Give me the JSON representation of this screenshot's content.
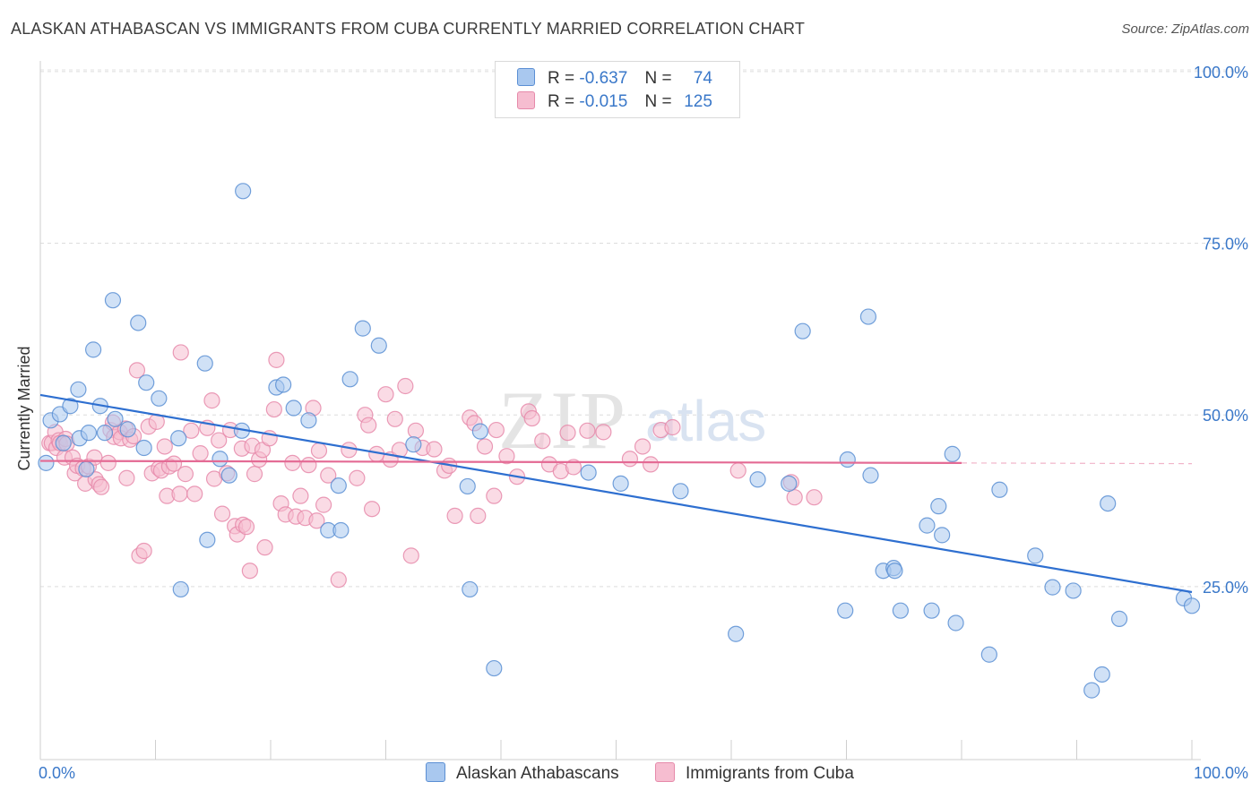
{
  "title": "ALASKAN ATHABASCAN VS IMMIGRANTS FROM CUBA CURRENTLY MARRIED CORRELATION CHART",
  "source": "Source: ZipAtlas.com",
  "watermark": {
    "zip": "ZIP",
    "atlas": "atlas"
  },
  "legend": {
    "row1": {
      "r_label": "R =",
      "r_value": "-0.637",
      "n_label": "N =",
      "n_value": "74"
    },
    "row2": {
      "r_label": "R =",
      "r_value": "-0.015",
      "n_label": "N =",
      "n_value": "125"
    }
  },
  "bottom_legend": {
    "series1": "Alaskan Athabascans",
    "series2": "Immigrants from Cuba"
  },
  "colors": {
    "blue_fill": "#a9c8ef",
    "blue_stroke": "#5b8fd4",
    "blue_line": "#2e6fd0",
    "pink_fill": "#f6bdd0",
    "pink_stroke": "#e68aaa",
    "pink_line": "#e46a94",
    "tick_text": "#3a78c9"
  },
  "chart_data": {
    "type": "scatter",
    "title": "ALASKAN ATHABASCAN VS IMMIGRANTS FROM CUBA CURRENTLY MARRIED CORRELATION CHART",
    "xlabel": "",
    "ylabel": "Currently Married",
    "xlim": [
      0,
      100
    ],
    "ylim": [
      0,
      102
    ],
    "x_tick_labels": [
      "0.0%",
      "100.0%"
    ],
    "y_ticks": [
      25,
      50,
      75,
      100
    ],
    "y_tick_labels": [
      "25.0%",
      "50.0%",
      "75.0%",
      "100.0%"
    ],
    "grid": true,
    "legend_position": "top-center",
    "series": [
      {
        "name": "Alaskan Athabascans",
        "R": -0.637,
        "N": 74,
        "trend": {
          "x": [
            0,
            100
          ],
          "y": [
            52.9,
            24.2
          ]
        },
        "points": [
          [
            0.5,
            43.0
          ],
          [
            0.9,
            49.2
          ],
          [
            1.7,
            50.1
          ],
          [
            2.0,
            45.9
          ],
          [
            2.6,
            51.3
          ],
          [
            3.4,
            46.6
          ],
          [
            3.3,
            53.7
          ],
          [
            4.0,
            42.1
          ],
          [
            4.2,
            47.4
          ],
          [
            4.6,
            59.5
          ],
          [
            5.2,
            51.3
          ],
          [
            5.6,
            47.4
          ],
          [
            6.3,
            66.7
          ],
          [
            6.5,
            49.4
          ],
          [
            7.6,
            47.9
          ],
          [
            8.5,
            63.4
          ],
          [
            9.0,
            45.2
          ],
          [
            9.2,
            54.7
          ],
          [
            10.3,
            52.4
          ],
          [
            12.0,
            46.6
          ],
          [
            12.2,
            24.6
          ],
          [
            14.3,
            57.5
          ],
          [
            14.5,
            31.8
          ],
          [
            15.6,
            43.6
          ],
          [
            16.4,
            41.2
          ],
          [
            17.5,
            47.7
          ],
          [
            17.6,
            82.6
          ],
          [
            20.5,
            54.0
          ],
          [
            21.1,
            54.4
          ],
          [
            22.0,
            51.0
          ],
          [
            23.3,
            49.2
          ],
          [
            25.0,
            33.2
          ],
          [
            25.9,
            39.7
          ],
          [
            26.1,
            33.2
          ],
          [
            26.9,
            55.2
          ],
          [
            28.0,
            62.6
          ],
          [
            29.4,
            60.1
          ],
          [
            32.4,
            45.7
          ],
          [
            37.1,
            39.6
          ],
          [
            37.3,
            24.6
          ],
          [
            38.2,
            47.6
          ],
          [
            39.4,
            13.1
          ],
          [
            47.6,
            41.6
          ],
          [
            50.4,
            40.0
          ],
          [
            55.6,
            38.9
          ],
          [
            60.4,
            18.1
          ],
          [
            62.3,
            40.6
          ],
          [
            65.0,
            40.0
          ],
          [
            66.2,
            62.2
          ],
          [
            69.9,
            21.5
          ],
          [
            70.1,
            43.5
          ],
          [
            71.9,
            64.3
          ],
          [
            72.1,
            41.2
          ],
          [
            73.2,
            27.3
          ],
          [
            74.1,
            27.7
          ],
          [
            74.2,
            27.3
          ],
          [
            74.7,
            21.5
          ],
          [
            77.0,
            33.9
          ],
          [
            77.4,
            21.5
          ],
          [
            78.0,
            36.7
          ],
          [
            78.3,
            32.5
          ],
          [
            79.2,
            44.3
          ],
          [
            79.5,
            19.7
          ],
          [
            82.4,
            15.1
          ],
          [
            83.3,
            39.1
          ],
          [
            86.4,
            29.5
          ],
          [
            87.9,
            24.9
          ],
          [
            89.7,
            24.4
          ],
          [
            91.3,
            9.9
          ],
          [
            92.2,
            12.2
          ],
          [
            92.7,
            37.1
          ],
          [
            93.7,
            20.3
          ],
          [
            99.3,
            23.3
          ],
          [
            100.0,
            22.2
          ]
        ]
      },
      {
        "name": "Immigrants from Cuba",
        "R": -0.015,
        "N": 125,
        "trend": {
          "x": [
            0,
            80
          ],
          "y": [
            43.3,
            43.0
          ]
        },
        "points": [
          [
            0.8,
            45.9
          ],
          [
            1.0,
            45.9
          ],
          [
            1.3,
            47.5
          ],
          [
            1.4,
            45.2
          ],
          [
            1.6,
            46.3
          ],
          [
            1.7,
            45.9
          ],
          [
            2.1,
            43.8
          ],
          [
            2.2,
            46.5
          ],
          [
            2.3,
            45.8
          ],
          [
            2.8,
            43.8
          ],
          [
            3.0,
            41.5
          ],
          [
            3.2,
            42.6
          ],
          [
            3.7,
            42.2
          ],
          [
            3.9,
            40.0
          ],
          [
            4.2,
            42.5
          ],
          [
            4.7,
            43.8
          ],
          [
            4.8,
            40.6
          ],
          [
            5.1,
            39.9
          ],
          [
            5.3,
            39.5
          ],
          [
            5.9,
            43.0
          ],
          [
            6.1,
            47.8
          ],
          [
            6.3,
            48.9
          ],
          [
            6.4,
            46.8
          ],
          [
            6.9,
            47.5
          ],
          [
            7.0,
            46.6
          ],
          [
            7.4,
            48.0
          ],
          [
            7.5,
            40.8
          ],
          [
            7.8,
            46.4
          ],
          [
            8.1,
            46.9
          ],
          [
            8.4,
            56.5
          ],
          [
            8.6,
            29.5
          ],
          [
            9.0,
            30.2
          ],
          [
            9.4,
            48.3
          ],
          [
            9.7,
            41.5
          ],
          [
            10.1,
            49.0
          ],
          [
            10.3,
            42.2
          ],
          [
            10.5,
            41.9
          ],
          [
            10.8,
            45.4
          ],
          [
            11.0,
            38.2
          ],
          [
            11.2,
            42.5
          ],
          [
            11.6,
            42.9
          ],
          [
            12.1,
            38.5
          ],
          [
            12.2,
            59.1
          ],
          [
            12.6,
            41.4
          ],
          [
            13.1,
            47.7
          ],
          [
            13.4,
            38.5
          ],
          [
            13.9,
            44.4
          ],
          [
            14.5,
            48.1
          ],
          [
            14.9,
            52.1
          ],
          [
            15.1,
            40.7
          ],
          [
            15.5,
            46.3
          ],
          [
            15.8,
            35.6
          ],
          [
            16.2,
            41.5
          ],
          [
            16.5,
            47.8
          ],
          [
            16.9,
            33.8
          ],
          [
            17.1,
            32.6
          ],
          [
            17.5,
            45.1
          ],
          [
            17.6,
            34.0
          ],
          [
            17.9,
            33.7
          ],
          [
            18.2,
            27.3
          ],
          [
            18.4,
            45.5
          ],
          [
            18.6,
            41.4
          ],
          [
            19.0,
            43.5
          ],
          [
            19.3,
            44.9
          ],
          [
            19.5,
            30.7
          ],
          [
            19.9,
            46.6
          ],
          [
            20.3,
            50.8
          ],
          [
            20.5,
            58.0
          ],
          [
            20.9,
            37.1
          ],
          [
            21.3,
            35.5
          ],
          [
            21.9,
            43.0
          ],
          [
            22.2,
            35.2
          ],
          [
            22.6,
            38.2
          ],
          [
            23.0,
            35.0
          ],
          [
            23.3,
            42.7
          ],
          [
            23.7,
            51.0
          ],
          [
            24.0,
            34.6
          ],
          [
            24.2,
            44.8
          ],
          [
            24.6,
            36.9
          ],
          [
            25.0,
            41.2
          ],
          [
            25.9,
            26.0
          ],
          [
            26.8,
            44.9
          ],
          [
            27.5,
            40.8
          ],
          [
            28.2,
            50.0
          ],
          [
            28.5,
            48.5
          ],
          [
            28.8,
            36.3
          ],
          [
            29.2,
            44.3
          ],
          [
            30.0,
            53.0
          ],
          [
            30.4,
            43.5
          ],
          [
            30.8,
            49.4
          ],
          [
            31.2,
            44.9
          ],
          [
            31.7,
            54.2
          ],
          [
            32.2,
            29.5
          ],
          [
            32.6,
            47.7
          ],
          [
            33.2,
            45.2
          ],
          [
            34.2,
            45.0
          ],
          [
            35.1,
            41.9
          ],
          [
            35.5,
            42.6
          ],
          [
            36.0,
            35.3
          ],
          [
            37.3,
            49.6
          ],
          [
            37.7,
            48.8
          ],
          [
            38.0,
            35.3
          ],
          [
            38.6,
            45.4
          ],
          [
            39.4,
            38.2
          ],
          [
            39.6,
            47.8
          ],
          [
            40.5,
            44.0
          ],
          [
            41.4,
            41.0
          ],
          [
            42.4,
            50.5
          ],
          [
            42.7,
            49.5
          ],
          [
            43.6,
            46.2
          ],
          [
            44.2,
            42.8
          ],
          [
            45.2,
            41.8
          ],
          [
            45.8,
            47.4
          ],
          [
            46.3,
            42.4
          ],
          [
            47.5,
            47.7
          ],
          [
            48.9,
            47.5
          ],
          [
            51.2,
            43.6
          ],
          [
            52.3,
            45.4
          ],
          [
            53.0,
            42.8
          ],
          [
            53.9,
            47.8
          ],
          [
            54.9,
            48.2
          ],
          [
            60.6,
            41.9
          ],
          [
            65.2,
            40.2
          ],
          [
            65.5,
            38.0
          ],
          [
            67.2,
            38.0
          ]
        ]
      }
    ]
  }
}
